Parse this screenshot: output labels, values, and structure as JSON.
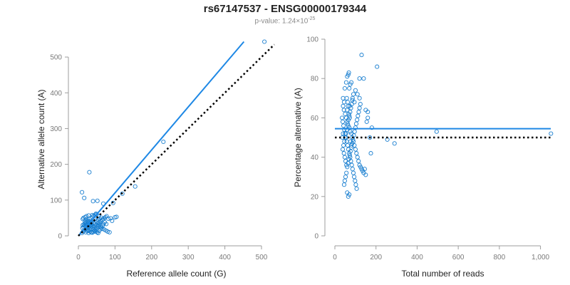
{
  "title": "rs67147537 - ENSG00000179344",
  "subtitle": {
    "prefix": "p-value: 1.24×10",
    "exponent": "-25"
  },
  "colors": {
    "points": "#1a7fd0",
    "fit_line": "#1e88e5",
    "reference_line": "#000000",
    "axis": "#9e9e9e",
    "tick_text": "#7a7a7a"
  },
  "chart_data": [
    {
      "type": "scatter",
      "xlabel": "Reference allele count (G)",
      "ylabel": "Alternative allele count (A)",
      "xlim": [
        0,
        535
      ],
      "ylim": [
        0,
        540
      ],
      "xticks": [
        0,
        100,
        200,
        300,
        400,
        500
      ],
      "yticks": [
        0,
        100,
        200,
        300,
        400,
        500
      ],
      "xtick_labels": [
        "0",
        "100",
        "200",
        "300",
        "400",
        "500"
      ],
      "ytick_labels": [
        "0",
        "100",
        "200",
        "300",
        "400",
        "500"
      ],
      "lines": [
        {
          "name": "fit",
          "style": "solid",
          "x": [
            0,
            452
          ],
          "y": [
            0,
            543
          ]
        },
        {
          "name": "equal",
          "style": "dotted",
          "x": [
            0,
            535
          ],
          "y": [
            0,
            535
          ]
        }
      ],
      "points": [
        [
          508,
          543
        ],
        [
          232,
          263
        ],
        [
          155,
          138
        ],
        [
          120,
          118
        ],
        [
          30,
          178
        ],
        [
          10,
          122
        ],
        [
          16,
          106
        ],
        [
          52,
          98
        ],
        [
          40,
          97
        ],
        [
          68,
          90
        ],
        [
          95,
          92
        ],
        [
          100,
          52
        ],
        [
          104,
          53
        ],
        [
          88,
          49
        ],
        [
          92,
          42
        ],
        [
          82,
          48
        ],
        [
          76,
          33
        ],
        [
          60,
          42
        ],
        [
          55,
          55
        ],
        [
          48,
          62
        ],
        [
          38,
          58
        ],
        [
          28,
          57
        ],
        [
          22,
          55
        ],
        [
          18,
          52
        ],
        [
          14,
          50
        ],
        [
          12,
          47
        ],
        [
          20,
          45
        ],
        [
          25,
          42
        ],
        [
          30,
          40
        ],
        [
          35,
          38
        ],
        [
          40,
          36
        ],
        [
          45,
          34
        ],
        [
          50,
          30
        ],
        [
          55,
          28
        ],
        [
          60,
          25
        ],
        [
          65,
          20
        ],
        [
          70,
          18
        ],
        [
          75,
          15
        ],
        [
          80,
          12
        ],
        [
          85,
          10
        ],
        [
          10,
          8
        ],
        [
          13,
          12
        ],
        [
          16,
          15
        ],
        [
          19,
          18
        ],
        [
          22,
          20
        ],
        [
          25,
          22
        ],
        [
          28,
          25
        ],
        [
          31,
          28
        ],
        [
          34,
          30
        ],
        [
          37,
          32
        ],
        [
          40,
          27
        ],
        [
          43,
          24
        ],
        [
          46,
          22
        ],
        [
          12,
          30
        ],
        [
          15,
          32
        ],
        [
          18,
          35
        ],
        [
          21,
          38
        ],
        [
          24,
          40
        ],
        [
          27,
          36
        ],
        [
          30,
          34
        ],
        [
          33,
          30
        ],
        [
          36,
          26
        ],
        [
          39,
          22
        ],
        [
          42,
          18
        ],
        [
          45,
          15
        ],
        [
          48,
          12
        ],
        [
          51,
          10
        ],
        [
          54,
          8
        ],
        [
          57,
          14
        ],
        [
          60,
          19
        ],
        [
          63,
          23
        ],
        [
          66,
          28
        ],
        [
          69,
          33
        ],
        [
          72,
          38
        ],
        [
          11,
          22
        ],
        [
          14,
          25
        ],
        [
          17,
          28
        ],
        [
          20,
          30
        ],
        [
          23,
          33
        ],
        [
          26,
          16
        ],
        [
          29,
          14
        ],
        [
          32,
          12
        ],
        [
          35,
          10
        ],
        [
          38,
          9
        ],
        [
          41,
          11
        ],
        [
          44,
          13
        ],
        [
          47,
          17
        ],
        [
          50,
          21
        ],
        [
          53,
          26
        ],
        [
          56,
          31
        ],
        [
          59,
          36
        ],
        [
          62,
          40
        ],
        [
          65,
          45
        ],
        [
          68,
          47
        ],
        [
          71,
          50
        ],
        [
          74,
          52
        ],
        [
          77,
          55
        ],
        [
          20,
          10
        ],
        [
          24,
          13
        ],
        [
          28,
          8
        ],
        [
          32,
          18
        ],
        [
          36,
          20
        ],
        [
          40,
          43
        ],
        [
          44,
          46
        ],
        [
          48,
          49
        ],
        [
          52,
          35
        ],
        [
          56,
          38
        ],
        [
          18,
          40
        ],
        [
          22,
          27
        ],
        [
          26,
          29
        ],
        [
          30,
          47
        ],
        [
          34,
          50
        ],
        [
          38,
          53
        ],
        [
          42,
          56
        ],
        [
          46,
          59
        ],
        [
          50,
          60
        ],
        [
          54,
          45
        ],
        [
          58,
          48
        ],
        [
          62,
          51
        ]
      ]
    },
    {
      "type": "scatter",
      "xlabel": "Total number of reads",
      "ylabel": "Percentage alternative (A)",
      "xlim": [
        0,
        1050
      ],
      "ylim": [
        0,
        100
      ],
      "xticks": [
        0,
        200,
        400,
        600,
        800,
        1000
      ],
      "yticks": [
        0,
        20,
        40,
        60,
        80,
        100
      ],
      "xtick_labels": [
        "0",
        "200",
        "400",
        "600",
        "800",
        "1,000"
      ],
      "ytick_labels": [
        "0",
        "20",
        "40",
        "60",
        "80",
        "100"
      ],
      "lines": [
        {
          "name": "fit",
          "style": "solid",
          "x": [
            0,
            1050
          ],
          "y": [
            54.5,
            54.5
          ]
        },
        {
          "name": "equal",
          "style": "dotted",
          "x": [
            0,
            1050
          ],
          "y": [
            50,
            50
          ]
        }
      ],
      "points": [
        [
          1051,
          52
        ],
        [
          495,
          53
        ],
        [
          290,
          47
        ],
        [
          255,
          49
        ],
        [
          205,
          86
        ],
        [
          130,
          92
        ],
        [
          140,
          80
        ],
        [
          120,
          80
        ],
        [
          60,
          81
        ],
        [
          65,
          82
        ],
        [
          68,
          83
        ],
        [
          55,
          78
        ],
        [
          48,
          75
        ],
        [
          70,
          75
        ],
        [
          75,
          77
        ],
        [
          80,
          78
        ],
        [
          100,
          74
        ],
        [
          110,
          72
        ],
        [
          40,
          70
        ],
        [
          45,
          68
        ],
        [
          58,
          70
        ],
        [
          62,
          68
        ],
        [
          72,
          66
        ],
        [
          85,
          69
        ],
        [
          95,
          68
        ],
        [
          120,
          70
        ],
        [
          150,
          64
        ],
        [
          160,
          63
        ],
        [
          40,
          66
        ],
        [
          44,
          64
        ],
        [
          50,
          62
        ],
        [
          55,
          60
        ],
        [
          60,
          58
        ],
        [
          65,
          56
        ],
        [
          70,
          55
        ],
        [
          75,
          53
        ],
        [
          80,
          52
        ],
        [
          85,
          50
        ],
        [
          90,
          48
        ],
        [
          95,
          46
        ],
        [
          100,
          44
        ],
        [
          105,
          42
        ],
        [
          110,
          40
        ],
        [
          115,
          38
        ],
        [
          120,
          36
        ],
        [
          125,
          35
        ],
        [
          130,
          34
        ],
        [
          135,
          33
        ],
        [
          140,
          32
        ],
        [
          145,
          34
        ],
        [
          150,
          31
        ],
        [
          155,
          58
        ],
        [
          160,
          60
        ],
        [
          35,
          60
        ],
        [
          38,
          58
        ],
        [
          42,
          56
        ],
        [
          46,
          54
        ],
        [
          50,
          52
        ],
        [
          54,
          50
        ],
        [
          58,
          48
        ],
        [
          62,
          46
        ],
        [
          66,
          44
        ],
        [
          70,
          42
        ],
        [
          74,
          40
        ],
        [
          78,
          38
        ],
        [
          82,
          36
        ],
        [
          86,
          34
        ],
        [
          90,
          32
        ],
        [
          94,
          30
        ],
        [
          98,
          28
        ],
        [
          102,
          26
        ],
        [
          106,
          24
        ],
        [
          60,
          22
        ],
        [
          65,
          20
        ],
        [
          70,
          21
        ],
        [
          45,
          26
        ],
        [
          48,
          28
        ],
        [
          52,
          30
        ],
        [
          56,
          32
        ],
        [
          60,
          35
        ],
        [
          64,
          37
        ],
        [
          68,
          39
        ],
        [
          72,
          41
        ],
        [
          76,
          43
        ],
        [
          80,
          45
        ],
        [
          84,
          47
        ],
        [
          88,
          49
        ],
        [
          92,
          51
        ],
        [
          96,
          53
        ],
        [
          100,
          55
        ],
        [
          104,
          57
        ],
        [
          108,
          59
        ],
        [
          112,
          61
        ],
        [
          116,
          63
        ],
        [
          120,
          65
        ],
        [
          124,
          67
        ],
        [
          38,
          44
        ],
        [
          42,
          46
        ],
        [
          46,
          48
        ],
        [
          50,
          50
        ],
        [
          54,
          52
        ],
        [
          58,
          54
        ],
        [
          62,
          57
        ],
        [
          66,
          59
        ],
        [
          70,
          61
        ],
        [
          74,
          63
        ],
        [
          78,
          65
        ],
        [
          82,
          67
        ],
        [
          86,
          70
        ],
        [
          90,
          72
        ],
        [
          36,
          50
        ],
        [
          40,
          52
        ],
        [
          44,
          42
        ],
        [
          48,
          40
        ],
        [
          52,
          38
        ],
        [
          56,
          36
        ],
        [
          60,
          64
        ],
        [
          64,
          66
        ],
        [
          68,
          62
        ],
        [
          72,
          60
        ],
        [
          76,
          48
        ],
        [
          80,
          46
        ],
        [
          170,
          50
        ],
        [
          175,
          42
        ],
        [
          180,
          55
        ]
      ]
    }
  ]
}
